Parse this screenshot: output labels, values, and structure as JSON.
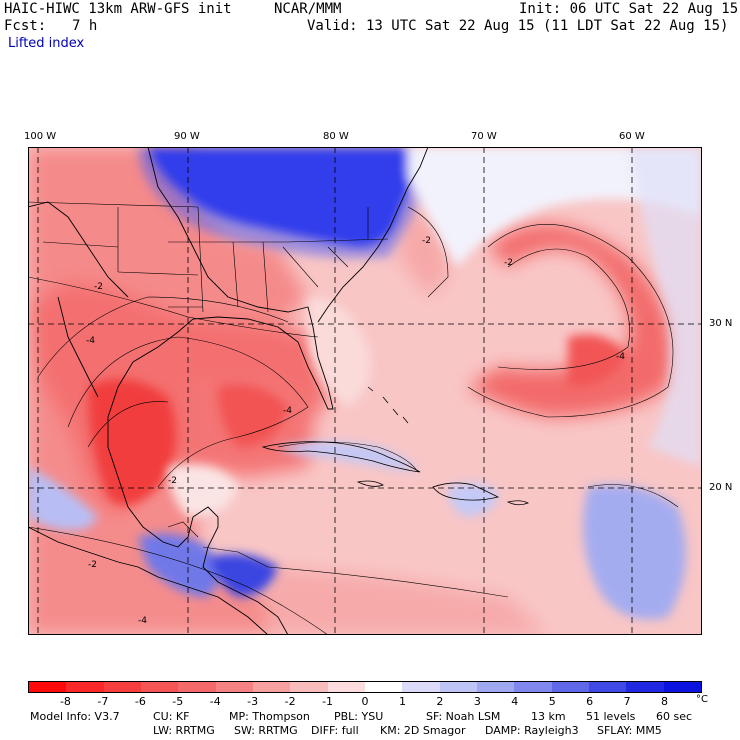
{
  "header": {
    "model": "HAIC-HIWC 13km ARW-GFS init",
    "org": "NCAR/MMM",
    "init": "Init: 06 UTC Sat 22 Aug 15",
    "fcst_label": "Fcst:",
    "fcst_value": "7 h",
    "valid": "Valid: 13 UTC Sat 22 Aug 15 (11 LDT Sat 22 Aug 15)",
    "field": "Lifted index"
  },
  "map": {
    "lon_labels": [
      "100 W",
      "90 W",
      "80 W",
      "70 W",
      "60 W"
    ],
    "lat_labels": [
      "30 N",
      "20 N"
    ],
    "contour_labels": [
      "-2",
      "-2",
      "-4",
      "-4",
      "-2",
      "-4",
      "-2",
      "-4",
      "-2"
    ],
    "colors": {
      "strong_neg": "#f03c3c",
      "neg": "#f58787",
      "weak_neg": "#f9c0c0",
      "pos": "#aab4f5",
      "strong_pos": "#0a14e6"
    }
  },
  "colorbar": {
    "ticks": [
      "-8",
      "-7",
      "-6",
      "-5",
      "-4",
      "-3",
      "-2",
      "-1",
      "0",
      "1",
      "2",
      "3",
      "4",
      "5",
      "6",
      "7",
      "8"
    ],
    "unit": "°C",
    "colors": [
      "#ff0a0a",
      "#fa2828",
      "#f73e3e",
      "#f55555",
      "#f46a6a",
      "#f58282",
      "#f7a0a0",
      "#f9bcbc",
      "#fcdcdc",
      "#ffffff",
      "#dcdcfa",
      "#bec4f5",
      "#a0a8f2",
      "#8088ee",
      "#6068ea",
      "#4048e6",
      "#2028e2",
      "#0a14de"
    ]
  },
  "footer": {
    "line1": [
      "Model Info: V3.7",
      "CU: KF",
      "MP: Thompson",
      "PBL: YSU",
      "SF: Noah LSM",
      "13 km",
      "51 levels",
      "60 sec"
    ],
    "line2": [
      "LW: RRTMG",
      "SW: RRTMG",
      "DIFF: full",
      "KM: 2D Smagor",
      "DAMP: Rayleigh3",
      "SFLAY: MM5"
    ]
  }
}
